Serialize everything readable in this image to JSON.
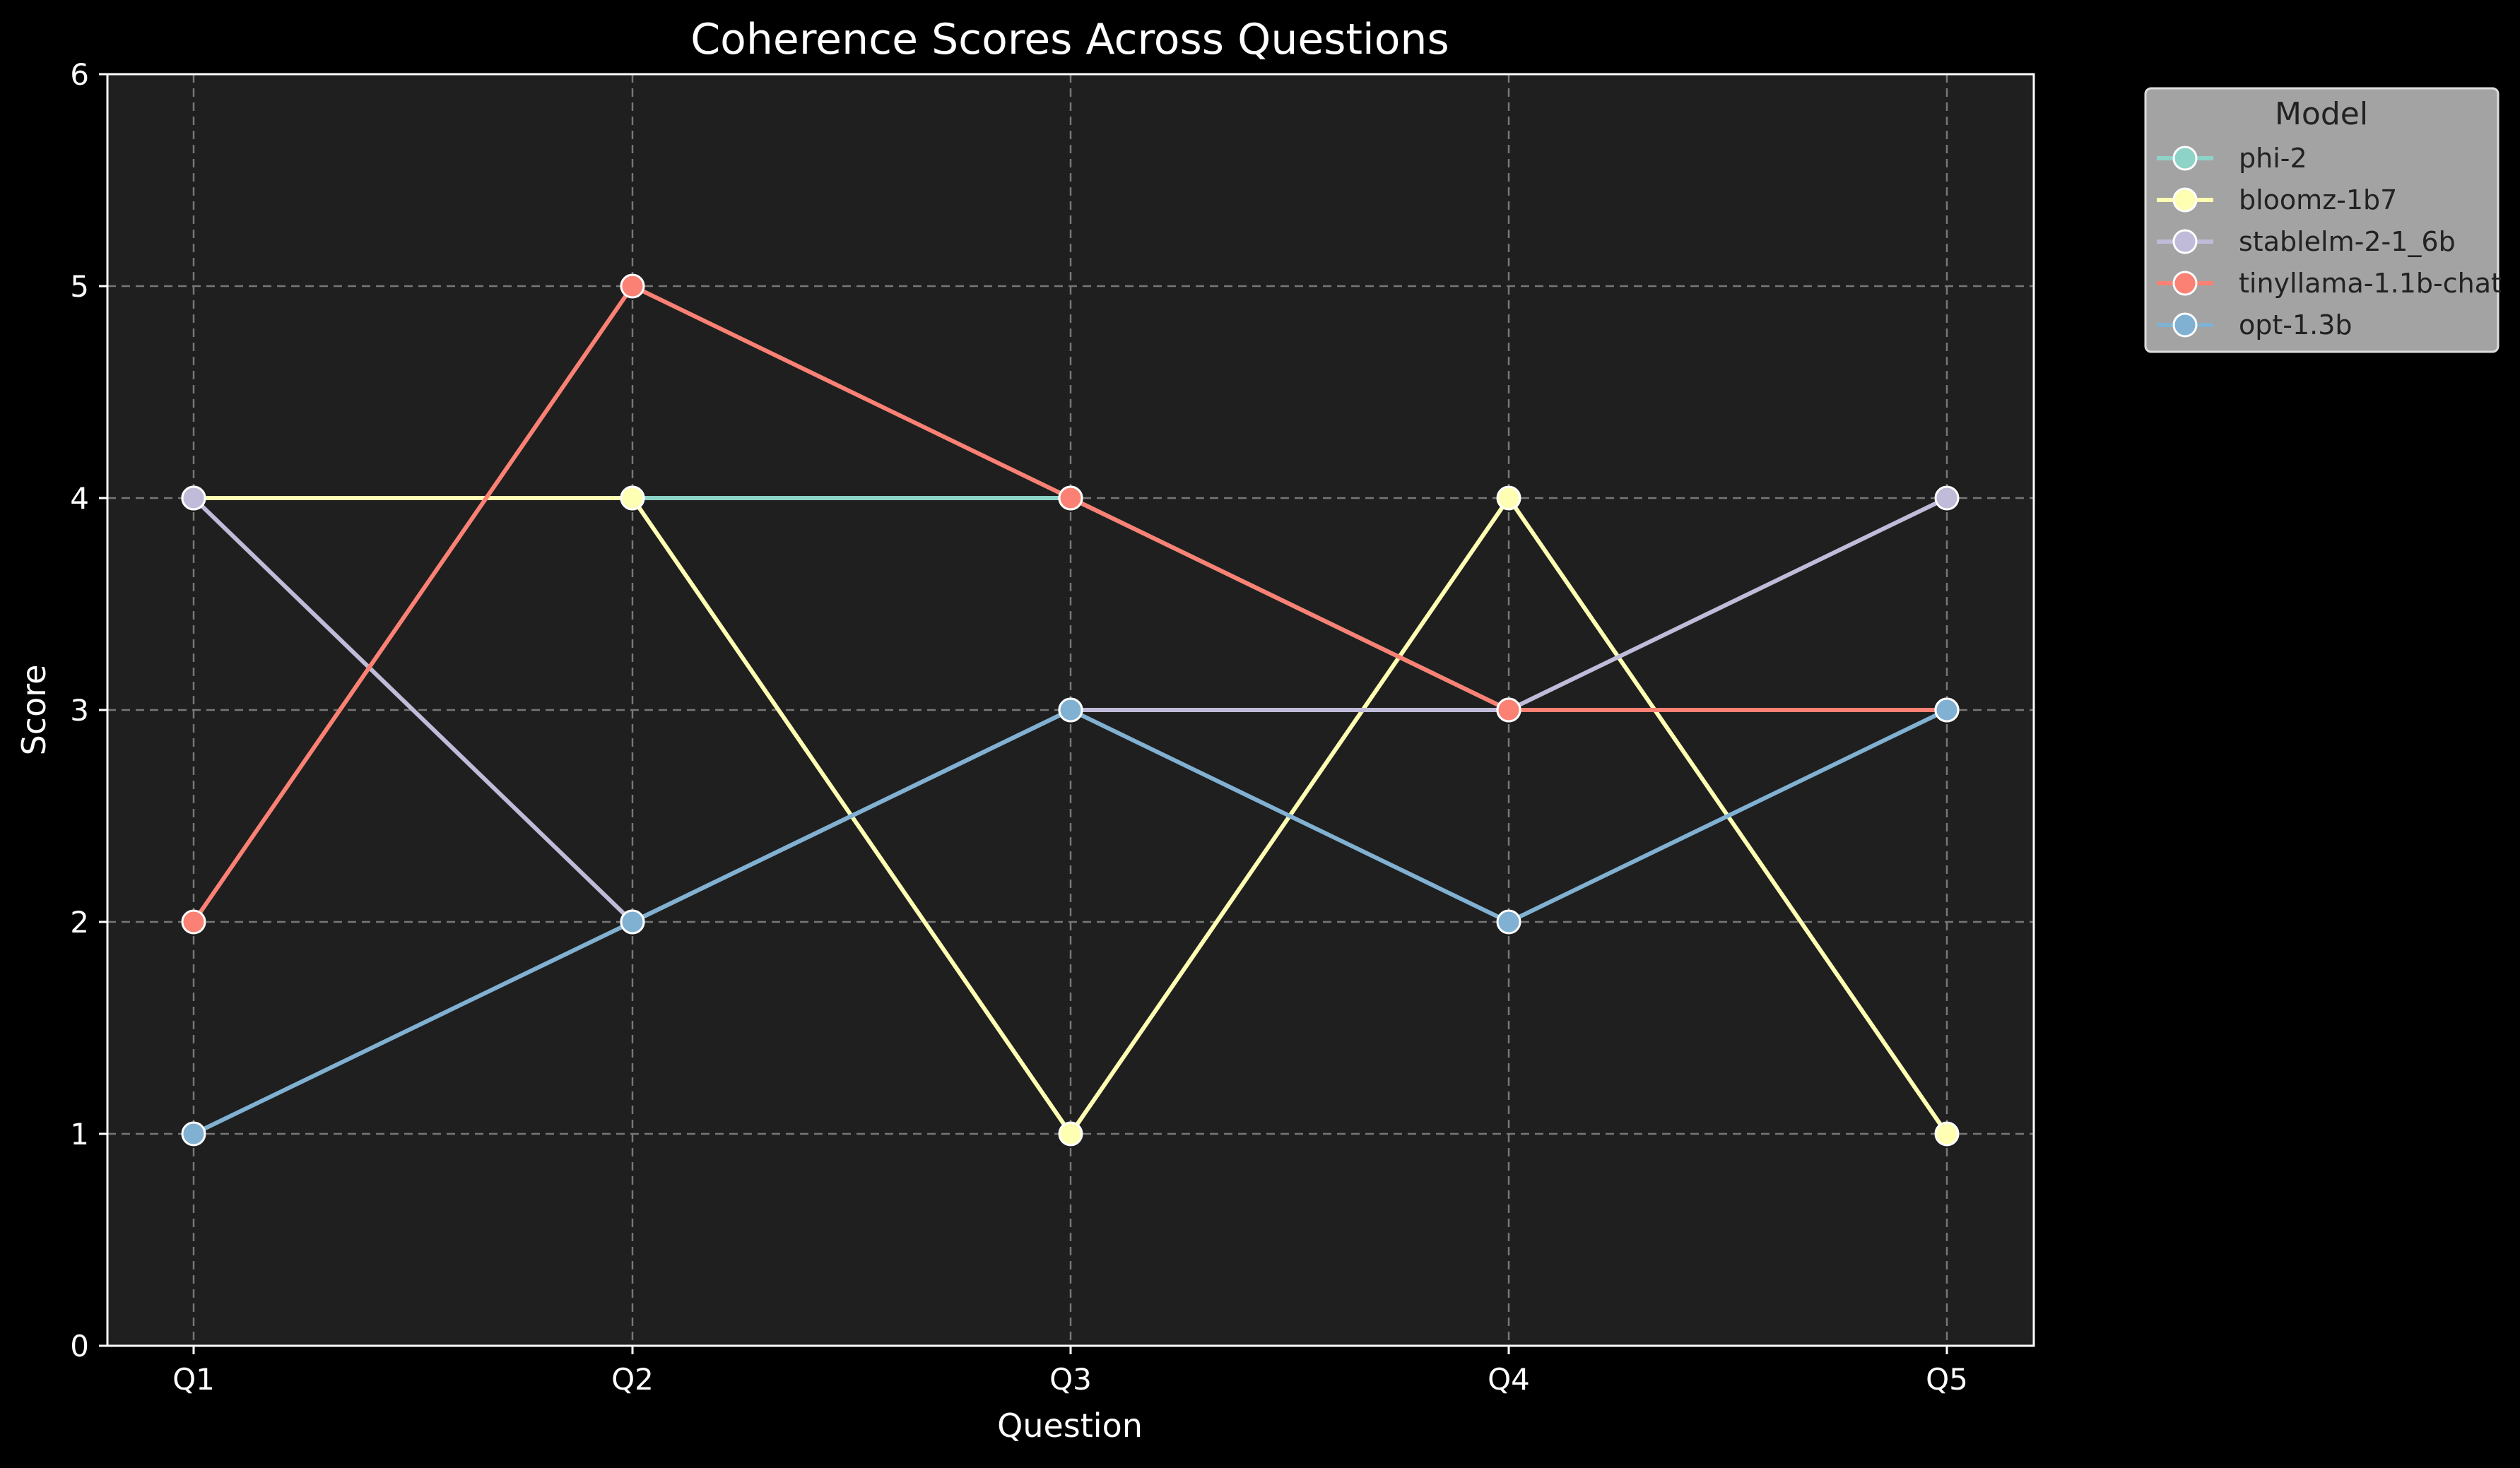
{
  "chart_data": {
    "type": "line",
    "title": "Coherence Scores Across Questions",
    "xlabel": "Question",
    "ylabel": "Score",
    "categories": [
      "Q1",
      "Q2",
      "Q3",
      "Q4",
      "Q5"
    ],
    "ylim": [
      0,
      6
    ],
    "yticks": [
      "0",
      "1",
      "2",
      "3",
      "4",
      "5",
      "6"
    ],
    "grid": true,
    "legend": {
      "title": "Model",
      "placement": "outside-top-right"
    },
    "series": [
      {
        "name": "phi-2",
        "color": "#8dd3c7",
        "values": [
          4,
          4,
          4,
          3,
          3
        ]
      },
      {
        "name": "bloomz-1b7",
        "color": "#feffb3",
        "values": [
          4,
          4,
          1,
          4,
          1
        ]
      },
      {
        "name": "stablelm-2-1_6b",
        "color": "#bfbbd9",
        "values": [
          4,
          2,
          3,
          3,
          4
        ]
      },
      {
        "name": "tinyllama-1.1b-chat",
        "color": "#fa8174",
        "values": [
          2,
          5,
          4,
          3,
          3
        ]
      },
      {
        "name": "opt-1.3b",
        "color": "#81b1d2",
        "values": [
          1,
          2,
          3,
          2,
          3
        ]
      }
    ]
  },
  "colors": {
    "background": "#000000",
    "plot_background": "#1f1f1f",
    "axis": "#ffffff",
    "grid": "#777777",
    "legend_background": "#a3a3a3",
    "text": "#ffffff"
  }
}
